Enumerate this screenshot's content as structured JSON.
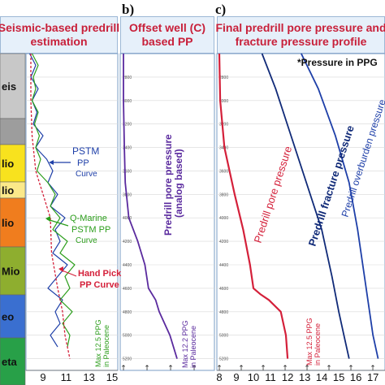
{
  "panels": [
    {
      "letter": "",
      "title_lines": [
        "Seismic-based predrill",
        "estimation"
      ],
      "title_color": "#c8203a"
    },
    {
      "letter": "b)",
      "title_lines": [
        "Offset well (C)",
        "based PP"
      ],
      "title_color": "#c8203a"
    },
    {
      "letter": "c)",
      "title_lines": [
        "Final predrill pore pressure and",
        "fracture pressure profile"
      ],
      "title_color": "#c8203a"
    }
  ],
  "pressure_note": "*Pressure in PPG",
  "stratigraphy": [
    {
      "label": "eis",
      "color": "#c8c8c8"
    },
    {
      "label": "",
      "color": "#9d9d9d"
    },
    {
      "label": "lio",
      "color": "#f8e21e"
    },
    {
      "label": "lio",
      "color": "#fbe98a"
    },
    {
      "label": "lio",
      "color": "#f07d1e"
    },
    {
      "label": "Mio",
      "color": "#8eae2f"
    },
    {
      "label": "eo",
      "color": "#3a6fd0"
    },
    {
      "label": "eta",
      "color": "#28a048"
    }
  ],
  "colors": {
    "blue": "#1e3fa8",
    "green": "#2c9e1c",
    "red": "#d4203a",
    "purple": "#5a2a9e",
    "navy": "#102a78"
  },
  "chart_data": [
    {
      "type": "line",
      "title": "Seismic-based predrill estimation",
      "x_ticks": [
        "9",
        "11",
        "13",
        "15"
      ],
      "xlim": [
        9,
        16
      ],
      "y_ticks": [
        "2800",
        "3000",
        "3200",
        "3400",
        "3600",
        "3800",
        "4000",
        "4200",
        "4400",
        "4600",
        "4800",
        "5000",
        "5200"
      ],
      "ylim": [
        2600,
        5300
      ],
      "series": [
        {
          "name": "PSTM PP curve",
          "color": "#1e3fa8",
          "x": [
            9.1,
            9.6,
            9.2,
            9.8,
            9.3,
            9.7,
            9.4,
            10.2,
            9.6,
            10.5,
            11.0,
            10.6,
            11.4,
            10.8,
            12.0,
            11.2,
            11.6,
            11.0,
            12.2,
            11.4,
            10.6,
            11.8,
            11.2,
            11.6,
            10.8,
            11.4
          ],
          "y": [
            2600,
            2700,
            2800,
            2900,
            3000,
            3100,
            3200,
            3300,
            3400,
            3500,
            3600,
            3700,
            3800,
            3900,
            4000,
            4100,
            4200,
            4300,
            4400,
            4500,
            4600,
            4700,
            4800,
            4900,
            5000,
            5100
          ]
        },
        {
          "name": "Q-Marine PSTM PP curve",
          "color": "#2c9e1c",
          "x": [
            9.3,
            9.8,
            9.4,
            9.6,
            9.3,
            9.8,
            9.5,
            9.9,
            9.6,
            10.0,
            9.7,
            10.6,
            11.2,
            10.8,
            11.6,
            11.0,
            12.2,
            11.6,
            12.8,
            12.0,
            12.4,
            11.6,
            12.6,
            11.8,
            12.4,
            12.2
          ],
          "y": [
            2600,
            2700,
            2800,
            2900,
            3000,
            3100,
            3200,
            3300,
            3400,
            3500,
            3600,
            3700,
            3800,
            3900,
            4000,
            4100,
            4200,
            4300,
            4400,
            4500,
            4600,
            4700,
            4800,
            4900,
            5000,
            5100
          ]
        },
        {
          "name": "Hand Pick PP curve",
          "color": "#d4203a",
          "x": [
            9.2,
            9.2,
            9.3,
            9.6,
            10.2,
            10.8,
            10.9,
            11.4,
            11.8,
            12.0,
            12.4
          ],
          "y": [
            2600,
            3000,
            3300,
            3600,
            3800,
            4000,
            4300,
            4600,
            4800,
            5000,
            5200
          ]
        }
      ],
      "annotations": [
        {
          "text": "PSTM",
          "color": "#1e3fa8"
        },
        {
          "text": "PP",
          "color": "#1e3fa8"
        },
        {
          "text": "Curve",
          "color": "#1e3fa8"
        },
        {
          "text": "Q-Marine",
          "color": "#2c9e1c"
        },
        {
          "text": "PSTM PP",
          "color": "#2c9e1c"
        },
        {
          "text": "Curve",
          "color": "#2c9e1c"
        },
        {
          "text": "Hand Pick",
          "color": "#d4203a"
        },
        {
          "text": "PP Curve",
          "color": "#d4203a"
        },
        {
          "text": "Max 12.5 PPG",
          "color": "#2c9e1c"
        },
        {
          "text": "in Paleocene",
          "color": "#2c9e1c"
        }
      ]
    },
    {
      "type": "line",
      "title": "Offset well (C) based PP",
      "xlim": [
        9,
        16
      ],
      "y_ticks": [
        "2800",
        "3000",
        "3200",
        "3400",
        "3600",
        "3800",
        "4000",
        "4200",
        "4400",
        "4600",
        "4800",
        "5000",
        "5200"
      ],
      "ylim": [
        2600,
        5300
      ],
      "series": [
        {
          "name": "Predrill pore pressure (analog based)",
          "color": "#5a2a9e",
          "x": [
            9.0,
            9.0,
            9.05,
            9.1,
            9.3,
            9.8,
            10.2,
            10.4,
            10.8,
            11.0,
            11.3,
            11.6,
            12.0
          ],
          "y": [
            2600,
            3000,
            3400,
            3700,
            4000,
            4200,
            4400,
            4600,
            4700,
            4800,
            4900,
            5000,
            5200
          ]
        }
      ],
      "annotations": [
        {
          "text": "Predrill pore pressure",
          "color": "#5a2a9e"
        },
        {
          "text": "(analog based)",
          "color": "#5a2a9e"
        },
        {
          "text": "Max 12.2 PPG",
          "color": "#5a2a9e"
        },
        {
          "text": "in Paleocene",
          "color": "#5a2a9e"
        }
      ]
    },
    {
      "type": "line",
      "title": "Final predrill pore pressure and fracture pressure profile",
      "x_ticks": [
        "8",
        "9",
        "10",
        "11",
        "12",
        "13",
        "14",
        "15",
        "16",
        "17"
      ],
      "xlim": [
        8,
        17.8
      ],
      "y_ticks": [
        "2800",
        "3000",
        "3200",
        "3400",
        "3600",
        "3800",
        "4000",
        "4200",
        "4400",
        "4600",
        "4800",
        "5000",
        "5200"
      ],
      "ylim": [
        2600,
        5300
      ],
      "series": [
        {
          "name": "Predrill pore pressure",
          "color": "#d4203a",
          "x": [
            8.0,
            8.05,
            8.3,
            8.9,
            9.4,
            9.8,
            10.0,
            10.4,
            10.9,
            11.6,
            11.9,
            12.0
          ],
          "y": [
            2600,
            3000,
            3400,
            3800,
            4100,
            4400,
            4600,
            4650,
            4700,
            4800,
            5000,
            5200
          ]
        },
        {
          "name": "Predrill fracture pressure",
          "color": "#102a78",
          "x": [
            10.5,
            11.3,
            12.2,
            13.1,
            14.0,
            14.6,
            15.0,
            15.3,
            15.6
          ],
          "y": [
            2600,
            2900,
            3300,
            3700,
            4100,
            4500,
            4800,
            5000,
            5200
          ]
        },
        {
          "name": "Predrill overburden pressure",
          "color": "#1e3fa8",
          "x": [
            12.8,
            13.8,
            14.8,
            15.6,
            16.1,
            16.5,
            16.8,
            17.0,
            17.3
          ],
          "y": [
            2600,
            2900,
            3300,
            3700,
            4100,
            4500,
            4800,
            5000,
            5200
          ]
        }
      ],
      "annotations": [
        {
          "text": "Predrill pore pressure",
          "color": "#d4203a"
        },
        {
          "text": "Predrill fracture pressure",
          "color": "#102a78"
        },
        {
          "text": "Predrill overburden pressure",
          "color": "#1e3fa8"
        },
        {
          "text": "Max 12.5 PPG",
          "color": "#d4203a"
        },
        {
          "text": "in Paleocene",
          "color": "#d4203a"
        }
      ]
    }
  ]
}
